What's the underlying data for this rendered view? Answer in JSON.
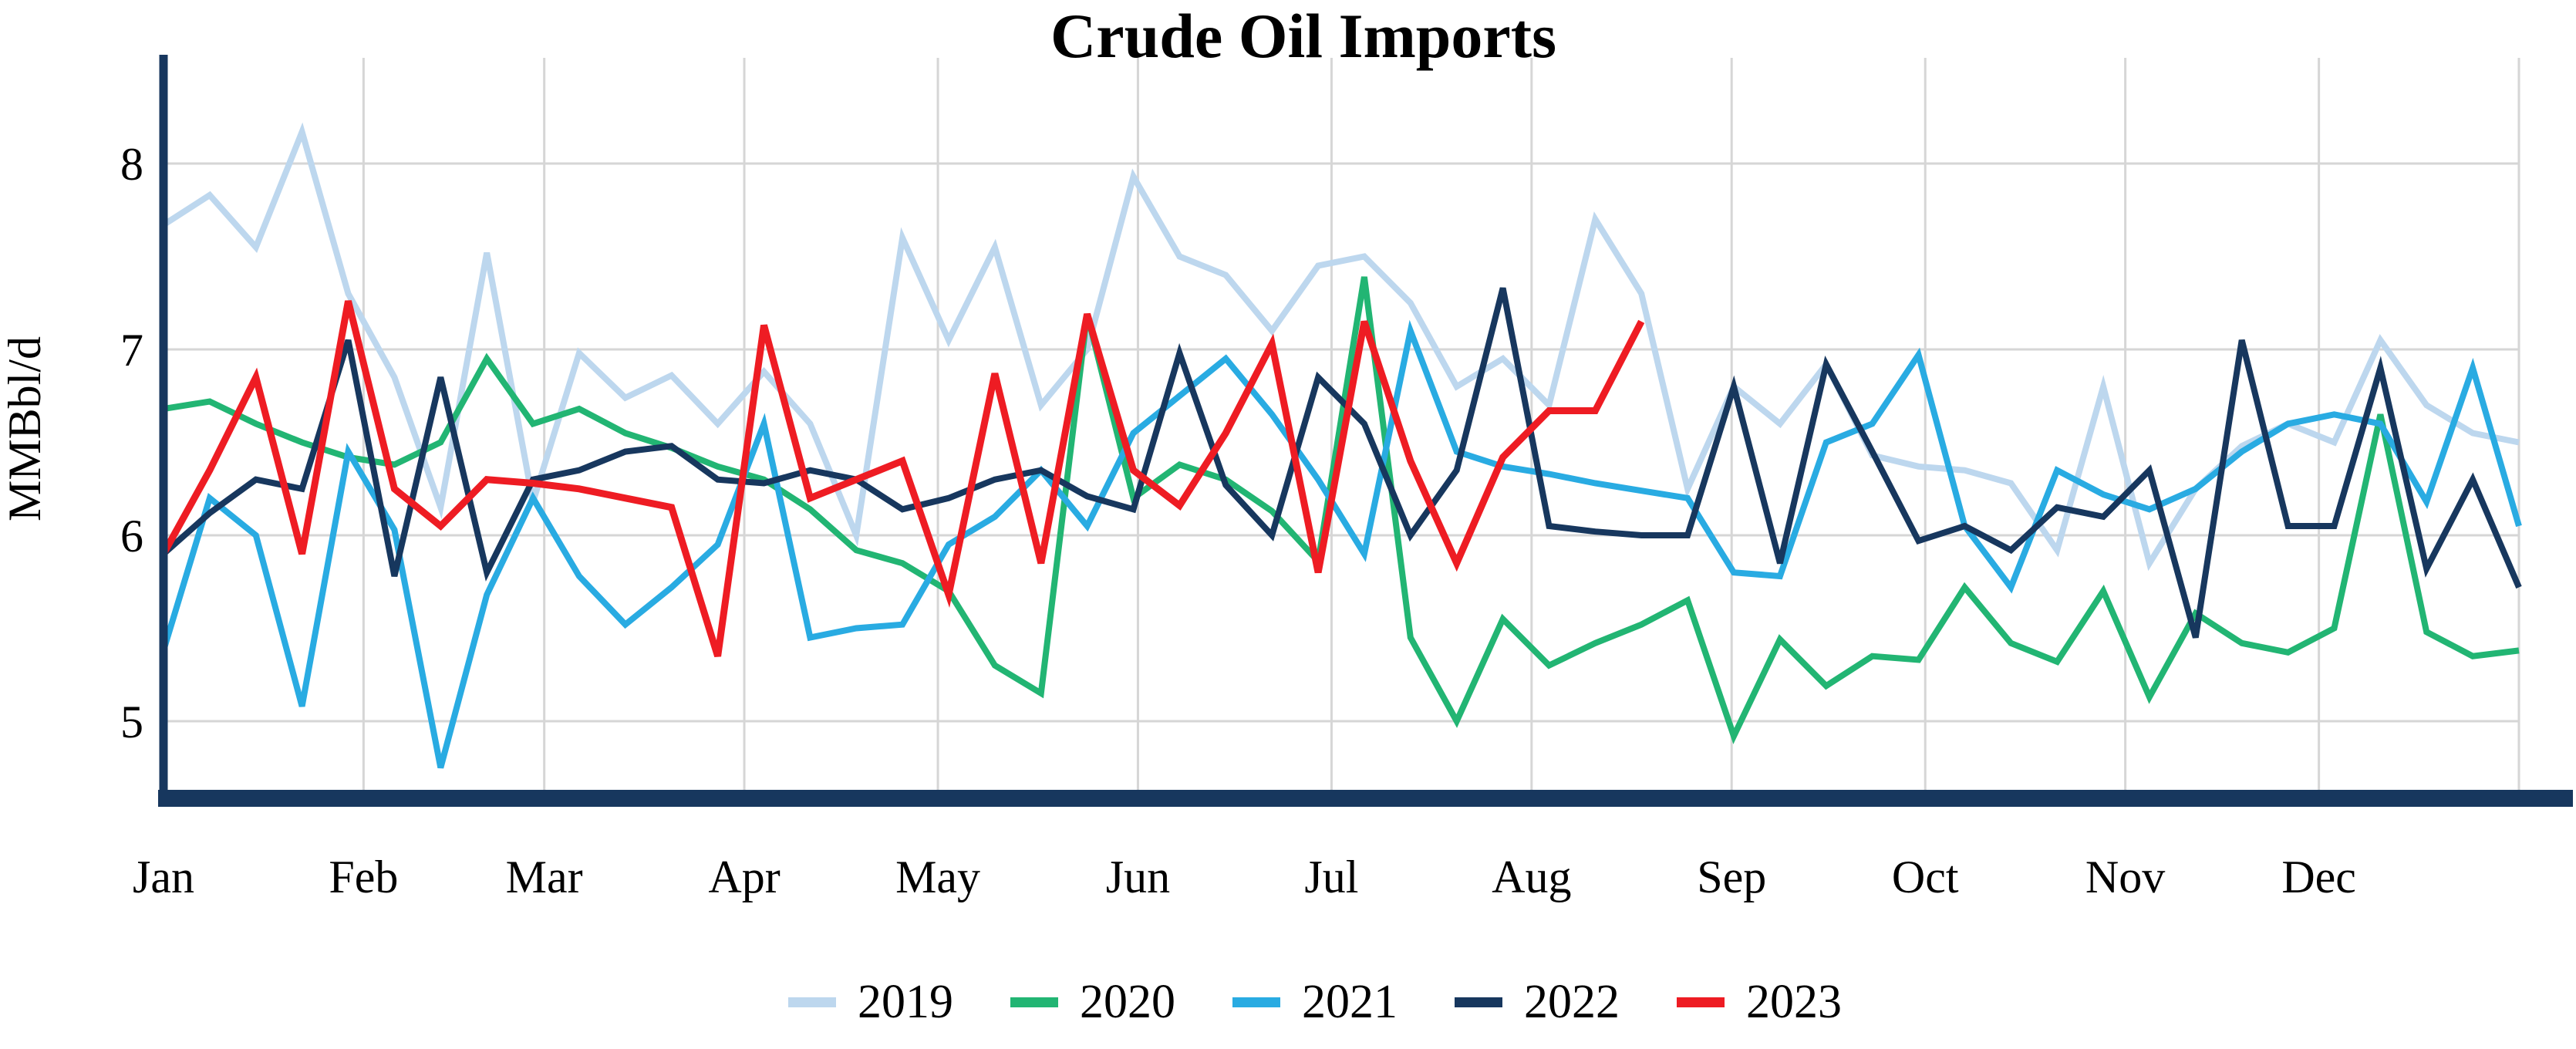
{
  "title": "Crude Oil Imports",
  "y_axis": {
    "label": "MMBbl/d",
    "ticks": [
      "8",
      "7",
      "6",
      "5"
    ]
  },
  "x_axis": {
    "months": [
      "Jan",
      "Feb",
      "Mar",
      "Apr",
      "May",
      "Jun",
      "Jul",
      "Aug",
      "Sep",
      "Oct",
      "Nov",
      "Dec"
    ]
  },
  "colors": {
    "axis": "#17375E",
    "grid": "#D6D6D6",
    "text": "#000000",
    "background": "#FFFFFF"
  },
  "chart_data": {
    "type": "line",
    "title": "Crude Oil Imports",
    "xlabel": "",
    "ylabel": "MMBbl/d",
    "x_resolution": "weekly",
    "x_tick_labels": [
      "Jan",
      "Feb",
      "Mar",
      "Apr",
      "May",
      "Jun",
      "Jul",
      "Aug",
      "Sep",
      "Oct",
      "Nov",
      "Dec"
    ],
    "ylim": [
      4.55,
      8.57
    ],
    "y_ticks": [
      5,
      6,
      7,
      8
    ],
    "grid": true,
    "legend_position": "bottom",
    "series": [
      {
        "name": "2019",
        "color": "#BDD7EE",
        "stroke_width": 8,
        "values": [
          7.67,
          7.83,
          7.55,
          8.17,
          7.3,
          6.85,
          6.15,
          7.52,
          6.18,
          6.98,
          6.74,
          6.86,
          6.6,
          6.88,
          6.6,
          6.0,
          7.6,
          7.05,
          7.55,
          6.7,
          7.0,
          7.93,
          7.5,
          7.4,
          7.1,
          7.45,
          7.5,
          7.25,
          6.8,
          6.95,
          6.7,
          7.7,
          7.3,
          6.25,
          6.8,
          6.6,
          6.92,
          6.43,
          6.37,
          6.35,
          6.28,
          5.92,
          6.8,
          5.85,
          6.25,
          6.48,
          6.6,
          6.5,
          7.05,
          6.7,
          6.55,
          6.5
        ]
      },
      {
        "name": "2020",
        "color": "#22B573",
        "stroke_width": 8,
        "values": [
          6.68,
          6.72,
          6.6,
          6.5,
          6.42,
          6.38,
          6.5,
          6.95,
          6.6,
          6.68,
          6.55,
          6.47,
          6.37,
          6.3,
          6.14,
          5.92,
          5.85,
          5.7,
          5.3,
          5.15,
          7.19,
          6.2,
          6.38,
          6.3,
          6.13,
          5.86,
          7.39,
          5.45,
          5.0,
          5.55,
          5.3,
          5.42,
          5.52,
          5.65,
          4.92,
          5.44,
          5.19,
          5.35,
          5.33,
          5.72,
          5.42,
          5.32,
          5.7,
          5.13,
          5.58,
          5.42,
          5.37,
          5.5,
          6.65,
          5.48,
          5.35,
          5.38
        ]
      },
      {
        "name": "2021",
        "color": "#29ABE2",
        "stroke_width": 8,
        "values": [
          5.38,
          6.2,
          6.0,
          5.08,
          6.45,
          6.03,
          4.75,
          5.68,
          6.2,
          5.78,
          5.52,
          5.72,
          5.95,
          6.6,
          5.45,
          5.5,
          5.52,
          5.95,
          6.1,
          6.35,
          6.05,
          6.55,
          6.75,
          6.95,
          6.65,
          6.3,
          5.9,
          7.1,
          6.45,
          6.37,
          6.33,
          6.28,
          6.24,
          6.2,
          5.8,
          5.78,
          6.5,
          6.6,
          6.97,
          6.05,
          5.72,
          6.35,
          6.22,
          6.14,
          6.25,
          6.45,
          6.6,
          6.65,
          6.6,
          6.18,
          6.9,
          6.05
        ]
      },
      {
        "name": "2022",
        "color": "#17375E",
        "stroke_width": 8,
        "values": [
          5.9,
          6.12,
          6.3,
          6.25,
          7.05,
          5.78,
          6.85,
          5.8,
          6.3,
          6.35,
          6.45,
          6.48,
          6.3,
          6.28,
          6.35,
          6.3,
          6.14,
          6.2,
          6.3,
          6.35,
          6.21,
          6.14,
          6.98,
          6.27,
          6.0,
          6.85,
          6.6,
          6.0,
          6.35,
          7.33,
          6.05,
          6.02,
          6.0,
          6.0,
          6.8,
          5.85,
          6.92,
          6.45,
          5.97,
          6.05,
          5.92,
          6.15,
          6.1,
          6.35,
          5.45,
          7.05,
          6.05,
          6.05,
          6.9,
          5.82,
          6.3,
          5.72
        ]
      },
      {
        "name": "2023",
        "color": "#EE1C23",
        "stroke_width": 9,
        "values": [
          5.9,
          6.35,
          6.85,
          5.9,
          7.26,
          6.25,
          6.05,
          6.3,
          6.28,
          6.25,
          6.2,
          6.15,
          5.35,
          7.13,
          6.2,
          6.3,
          6.4,
          5.68,
          6.87,
          5.85,
          7.19,
          6.35,
          6.16,
          6.55,
          7.03,
          5.8,
          7.15,
          6.4,
          5.85,
          6.42,
          6.67,
          6.67,
          7.15
        ]
      }
    ]
  }
}
